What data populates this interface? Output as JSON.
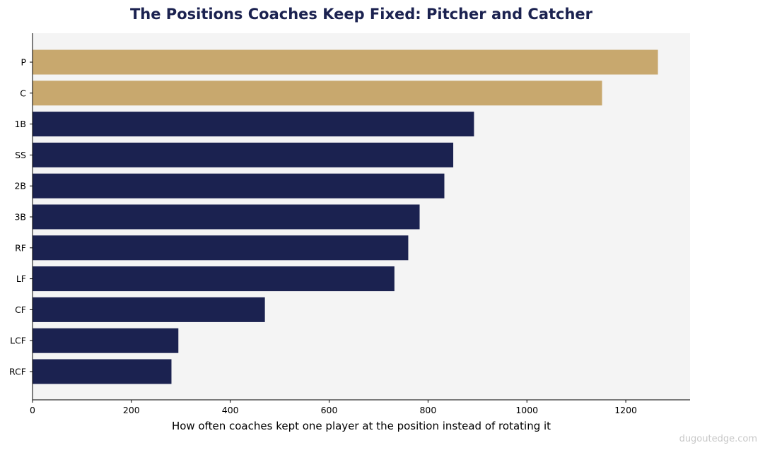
{
  "chart_data": {
    "type": "bar",
    "orientation": "horizontal",
    "title": "The Positions Coaches Keep Fixed: Pitcher and Catcher",
    "xlabel": "How often coaches kept one player at the position instead of rotating it",
    "ylabel": "",
    "categories": [
      "P",
      "C",
      "1B",
      "SS",
      "2B",
      "3B",
      "RF",
      "LF",
      "CF",
      "LCF",
      "RCF"
    ],
    "values": [
      1265,
      1152,
      893,
      851,
      833,
      783,
      760,
      732,
      470,
      295,
      281
    ],
    "highlighted": [
      "P",
      "C"
    ],
    "xlim": [
      0,
      1330
    ],
    "xticks": [
      0,
      200,
      400,
      600,
      800,
      1000,
      1200
    ],
    "grid": false,
    "colors": {
      "highlight": "#C8A86E",
      "default": "#1B2250",
      "plot_background": "#F4F4F4",
      "title": "#1B2250",
      "source": "#C8C8C8"
    }
  },
  "source_note": "dugoutedge.com"
}
